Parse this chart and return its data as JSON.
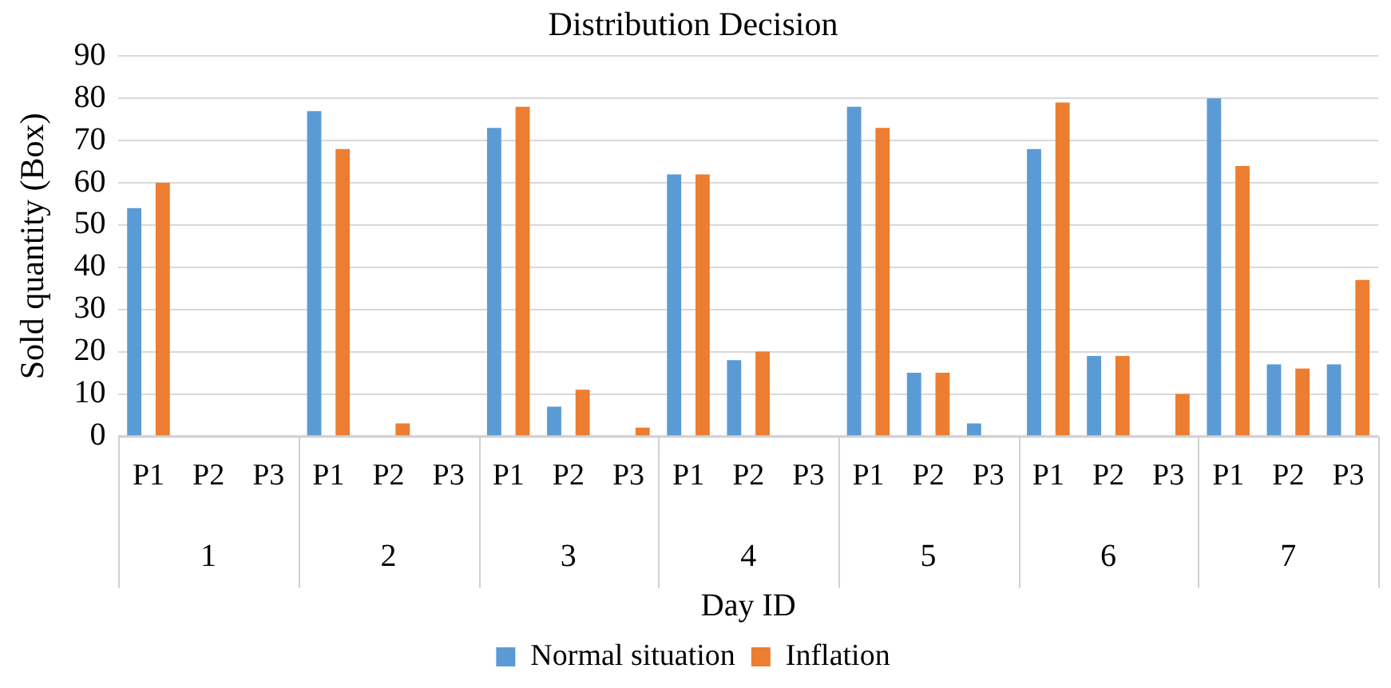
{
  "chart_data": {
    "type": "bar",
    "title": "Distribution Decision",
    "xlabel": "Day ID",
    "ylabel": "Sold quantity (Box)",
    "categories": [
      "P1",
      "P2",
      "P3",
      "P1",
      "P2",
      "P3",
      "P1",
      "P2",
      "P3",
      "P1",
      "P2",
      "P3",
      "P1",
      "P2",
      "P3",
      "P1",
      "P2",
      "P3",
      "P1",
      "P2",
      "P3"
    ],
    "annotations": [
      "1",
      "2",
      "3",
      "4",
      "5",
      "6",
      "7"
    ],
    "series": [
      {
        "name": "Normal situation",
        "color": "#5b9bd5",
        "values": [
          54,
          0,
          0,
          77,
          0,
          0,
          73,
          7,
          0,
          62,
          18,
          0,
          78,
          15,
          3,
          68,
          19,
          0,
          80,
          17,
          17
        ]
      },
      {
        "name": "Inflation",
        "color": "#ed7d31",
        "values": [
          60,
          0,
          0,
          68,
          3,
          0,
          78,
          11,
          2,
          62,
          20,
          0,
          73,
          15,
          0,
          79,
          19,
          10,
          64,
          16,
          37
        ]
      }
    ],
    "ylim": [
      0,
      90
    ],
    "yticks": [
      0,
      10,
      20,
      30,
      40,
      50,
      60,
      70,
      80,
      90
    ],
    "grid": "y",
    "legend": "bottom"
  }
}
